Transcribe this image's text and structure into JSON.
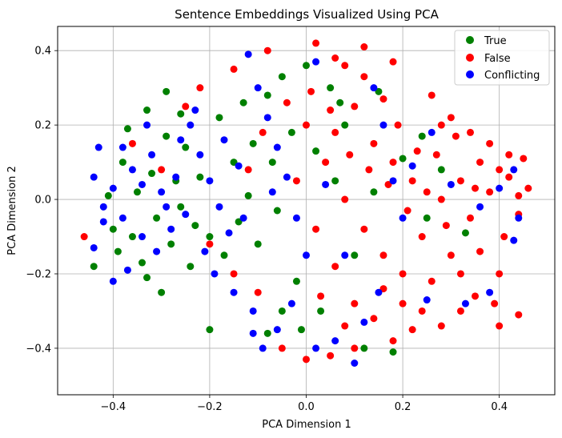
{
  "chart_data": {
    "type": "scatter",
    "title": "Sentence Embeddings Visualized Using PCA",
    "xlabel": "PCA Dimension 1",
    "ylabel": "PCA Dimension 2",
    "xlim": [
      -0.515,
      0.515
    ],
    "ylim": [
      -0.525,
      0.465
    ],
    "xticks": [
      -0.4,
      -0.2,
      0.0,
      0.2,
      0.4
    ],
    "yticks": [
      -0.4,
      -0.2,
      0.0,
      0.2,
      0.4
    ],
    "xtick_labels": [
      "−0.4",
      "−0.2",
      "0.0",
      "0.2",
      "0.4"
    ],
    "ytick_labels": [
      "−0.4",
      "−0.2",
      "0.0",
      "0.2",
      "0.4"
    ],
    "grid": true,
    "legend_position": "top-right",
    "series": [
      {
        "name": "True",
        "color": "#008000",
        "points": [
          [
            -0.37,
            0.19
          ],
          [
            -0.33,
            0.24
          ],
          [
            -0.29,
            0.29
          ],
          [
            -0.38,
            0.1
          ],
          [
            -0.35,
            0.02
          ],
          [
            -0.31,
            -0.05
          ],
          [
            -0.28,
            -0.12
          ],
          [
            -0.34,
            -0.17
          ],
          [
            -0.3,
            -0.25
          ],
          [
            -0.4,
            -0.08
          ],
          [
            -0.44,
            -0.18
          ],
          [
            -0.25,
            0.14
          ],
          [
            -0.22,
            0.06
          ],
          [
            -0.26,
            -0.02
          ],
          [
            -0.2,
            -0.1
          ],
          [
            -0.24,
            -0.18
          ],
          [
            -0.18,
            0.22
          ],
          [
            -0.15,
            0.1
          ],
          [
            -0.12,
            0.01
          ],
          [
            -0.14,
            -0.06
          ],
          [
            -0.1,
            -0.12
          ],
          [
            -0.08,
            0.28
          ],
          [
            -0.05,
            0.33
          ],
          [
            0.0,
            0.36
          ],
          [
            0.05,
            0.3
          ],
          [
            0.07,
            0.26
          ],
          [
            -0.03,
            0.18
          ],
          [
            0.02,
            0.13
          ],
          [
            0.06,
            0.05
          ],
          [
            -0.06,
            -0.03
          ],
          [
            -0.02,
            -0.22
          ],
          [
            -0.05,
            -0.3
          ],
          [
            -0.08,
            -0.36
          ],
          [
            -0.01,
            -0.35
          ],
          [
            0.03,
            -0.3
          ],
          [
            0.12,
            -0.4
          ],
          [
            -0.2,
            -0.35
          ],
          [
            0.18,
            -0.41
          ],
          [
            -0.32,
            0.07
          ],
          [
            -0.36,
            -0.1
          ],
          [
            -0.27,
            0.05
          ],
          [
            -0.23,
            -0.07
          ],
          [
            -0.41,
            0.01
          ],
          [
            -0.29,
            0.17
          ],
          [
            -0.17,
            -0.15
          ],
          [
            -0.11,
            0.15
          ],
          [
            0.15,
            0.29
          ],
          [
            0.2,
            0.11
          ],
          [
            0.24,
            0.17
          ],
          [
            0.1,
            -0.15
          ],
          [
            0.14,
            0.02
          ],
          [
            -0.33,
            -0.21
          ],
          [
            -0.39,
            -0.14
          ],
          [
            -0.26,
            0.23
          ],
          [
            -0.07,
            0.1
          ],
          [
            0.25,
            -0.05
          ],
          [
            0.28,
            0.08
          ],
          [
            0.33,
            -0.09
          ],
          [
            -0.13,
            0.26
          ],
          [
            0.08,
            0.2
          ]
        ]
      },
      {
        "name": "False",
        "color": "#ff0000",
        "points": [
          [
            0.02,
            0.42
          ],
          [
            0.06,
            0.38
          ],
          [
            0.12,
            0.41
          ],
          [
            0.18,
            0.37
          ],
          [
            0.26,
            0.28
          ],
          [
            0.3,
            0.22
          ],
          [
            0.34,
            0.18
          ],
          [
            0.38,
            0.15
          ],
          [
            0.42,
            0.12
          ],
          [
            0.45,
            0.11
          ],
          [
            0.46,
            0.03
          ],
          [
            0.44,
            -0.04
          ],
          [
            0.41,
            -0.1
          ],
          [
            0.4,
            -0.2
          ],
          [
            0.39,
            -0.28
          ],
          [
            0.35,
            -0.26
          ],
          [
            0.32,
            -0.3
          ],
          [
            0.28,
            -0.34
          ],
          [
            0.22,
            -0.35
          ],
          [
            0.18,
            -0.38
          ],
          [
            0.1,
            -0.4
          ],
          [
            0.05,
            -0.42
          ],
          [
            0.0,
            -0.43
          ],
          [
            -0.05,
            -0.4
          ],
          [
            -0.1,
            -0.25
          ],
          [
            -0.15,
            -0.2
          ],
          [
            -0.2,
            -0.12
          ],
          [
            -0.08,
            0.4
          ],
          [
            -0.15,
            0.35
          ],
          [
            -0.22,
            0.3
          ],
          [
            -0.25,
            0.25
          ],
          [
            0.0,
            0.2
          ],
          [
            0.04,
            0.1
          ],
          [
            0.08,
            0.0
          ],
          [
            0.12,
            -0.08
          ],
          [
            0.16,
            -0.15
          ],
          [
            0.2,
            -0.2
          ],
          [
            0.24,
            -0.1
          ],
          [
            0.28,
            0.0
          ],
          [
            0.32,
            0.05
          ],
          [
            0.36,
            0.1
          ],
          [
            0.22,
            0.05
          ],
          [
            0.18,
            0.1
          ],
          [
            0.14,
            0.15
          ],
          [
            0.1,
            0.25
          ],
          [
            0.06,
            0.18
          ],
          [
            -0.02,
            0.05
          ],
          [
            0.02,
            -0.08
          ],
          [
            0.06,
            -0.18
          ],
          [
            0.1,
            -0.28
          ],
          [
            0.14,
            -0.32
          ],
          [
            0.2,
            -0.28
          ],
          [
            0.26,
            -0.22
          ],
          [
            0.3,
            -0.15
          ],
          [
            0.34,
            -0.05
          ],
          [
            0.38,
            0.02
          ],
          [
            0.42,
            0.06
          ],
          [
            -0.46,
            -0.1
          ],
          [
            -0.36,
            0.15
          ],
          [
            -0.3,
            0.08
          ],
          [
            0.44,
            -0.31
          ],
          [
            0.4,
            -0.34
          ],
          [
            0.19,
            0.2
          ],
          [
            0.23,
            0.13
          ],
          [
            0.27,
            0.12
          ],
          [
            0.31,
            0.17
          ],
          [
            0.35,
            0.03
          ],
          [
            0.29,
            -0.07
          ],
          [
            0.25,
            0.02
          ],
          [
            0.21,
            -0.03
          ],
          [
            0.17,
            0.04
          ],
          [
            0.13,
            0.08
          ],
          [
            0.09,
            0.12
          ],
          [
            0.05,
            0.24
          ],
          [
            0.01,
            0.29
          ],
          [
            -0.04,
            0.26
          ],
          [
            -0.09,
            0.18
          ],
          [
            -0.12,
            0.08
          ],
          [
            0.03,
            -0.26
          ],
          [
            0.08,
            -0.34
          ],
          [
            0.16,
            -0.24
          ],
          [
            0.24,
            -0.3
          ],
          [
            0.32,
            -0.2
          ],
          [
            0.36,
            -0.14
          ],
          [
            0.12,
            0.33
          ],
          [
            0.16,
            0.27
          ],
          [
            0.08,
            0.36
          ],
          [
            0.28,
            0.2
          ],
          [
            0.4,
            0.08
          ],
          [
            0.44,
            0.01
          ]
        ]
      },
      {
        "name": "Conflicting",
        "color": "#0000ff",
        "points": [
          [
            -0.44,
            0.06
          ],
          [
            -0.42,
            -0.02
          ],
          [
            -0.4,
            0.03
          ],
          [
            -0.38,
            -0.05
          ],
          [
            -0.36,
            0.08
          ],
          [
            -0.34,
            -0.1
          ],
          [
            -0.32,
            0.12
          ],
          [
            -0.3,
            0.02
          ],
          [
            -0.28,
            -0.08
          ],
          [
            -0.26,
            0.16
          ],
          [
            -0.24,
            0.2
          ],
          [
            -0.22,
            0.12
          ],
          [
            -0.2,
            0.05
          ],
          [
            -0.18,
            -0.02
          ],
          [
            -0.16,
            -0.09
          ],
          [
            -0.14,
            0.09
          ],
          [
            -0.12,
            0.39
          ],
          [
            -0.1,
            0.3
          ],
          [
            -0.08,
            0.22
          ],
          [
            -0.06,
            0.14
          ],
          [
            -0.04,
            0.06
          ],
          [
            -0.02,
            -0.05
          ],
          [
            0.0,
            -0.15
          ],
          [
            -0.03,
            -0.28
          ],
          [
            -0.06,
            -0.35
          ],
          [
            -0.09,
            -0.4
          ],
          [
            -0.11,
            -0.3
          ],
          [
            0.02,
            -0.4
          ],
          [
            0.06,
            -0.38
          ],
          [
            0.1,
            -0.44
          ],
          [
            -0.4,
            -0.22
          ],
          [
            -0.44,
            -0.13
          ],
          [
            -0.38,
            0.14
          ],
          [
            -0.34,
            0.04
          ],
          [
            -0.31,
            -0.14
          ],
          [
            -0.27,
            0.06
          ],
          [
            -0.25,
            -0.04
          ],
          [
            -0.21,
            -0.14
          ],
          [
            -0.17,
            0.16
          ],
          [
            -0.13,
            -0.05
          ],
          [
            0.02,
            0.37
          ],
          [
            0.14,
            0.3
          ],
          [
            0.16,
            0.2
          ],
          [
            0.2,
            -0.05
          ],
          [
            0.22,
            0.09
          ],
          [
            0.26,
            0.18
          ],
          [
            0.3,
            0.04
          ],
          [
            0.36,
            -0.02
          ],
          [
            0.4,
            0.03
          ],
          [
            0.43,
            0.08
          ],
          [
            0.44,
            -0.05
          ],
          [
            0.43,
            -0.11
          ],
          [
            0.38,
            -0.25
          ],
          [
            0.33,
            -0.28
          ],
          [
            0.25,
            -0.27
          ],
          [
            0.15,
            -0.25
          ],
          [
            0.08,
            -0.15
          ],
          [
            0.04,
            0.04
          ],
          [
            -0.43,
            0.14
          ],
          [
            -0.42,
            -0.06
          ],
          [
            -0.37,
            -0.19
          ],
          [
            -0.33,
            0.2
          ],
          [
            -0.29,
            -0.02
          ],
          [
            -0.23,
            0.24
          ],
          [
            -0.19,
            -0.2
          ],
          [
            -0.15,
            -0.25
          ],
          [
            -0.11,
            -0.36
          ],
          [
            -0.07,
            0.02
          ],
          [
            0.12,
            -0.33
          ],
          [
            0.18,
            0.05
          ]
        ]
      }
    ]
  }
}
